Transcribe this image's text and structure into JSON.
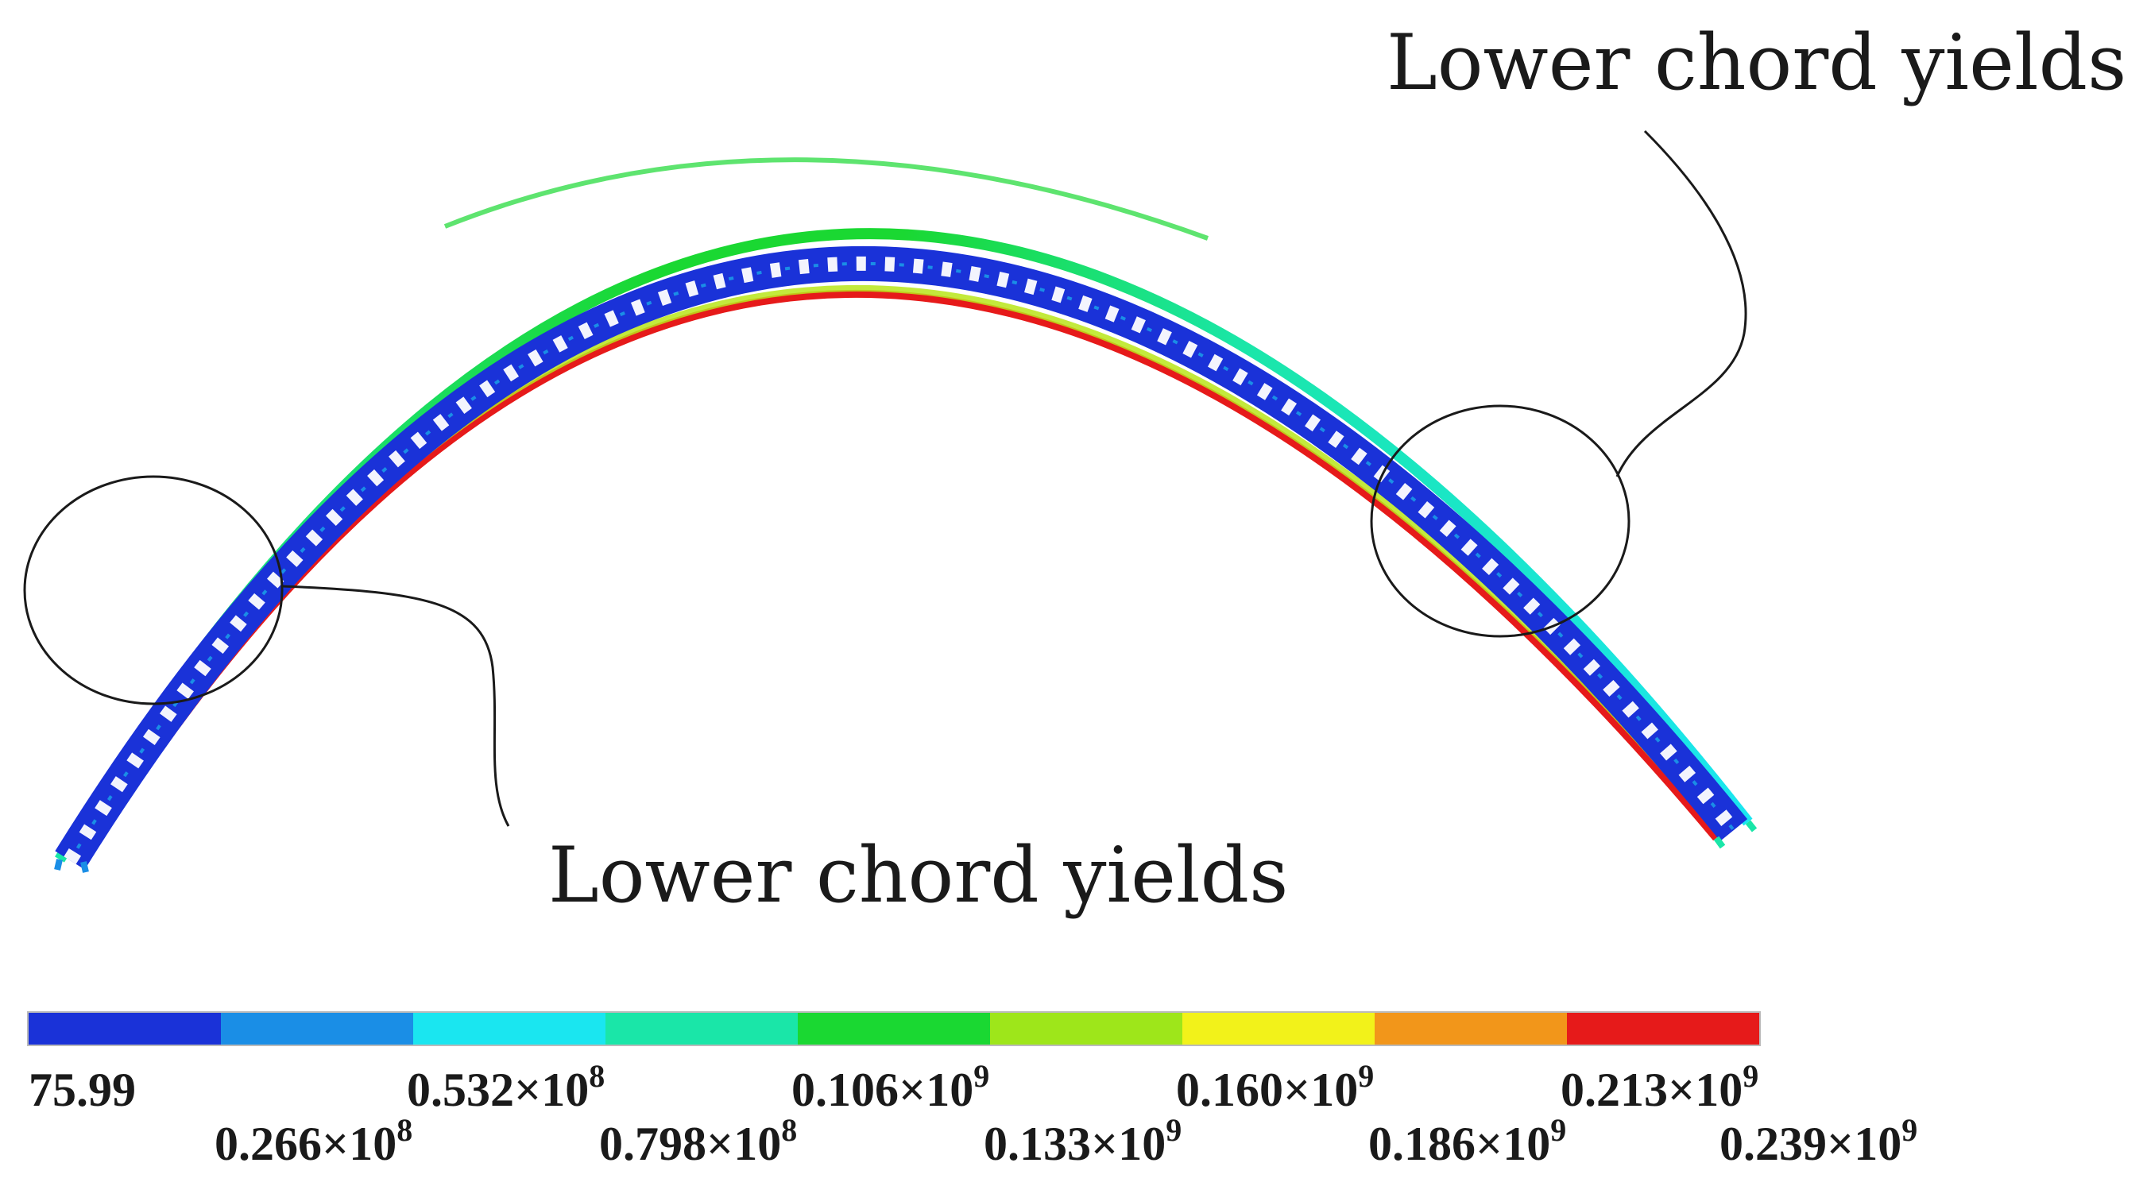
{
  "annotations": {
    "right": "Lower chord yields",
    "bottom": "Lower chord yields"
  },
  "legend": {
    "colors": [
      "#1a32d8",
      "#1a8ee6",
      "#1ae6f0",
      "#1ae6a8",
      "#1ad832",
      "#9ee61a",
      "#f2f21a",
      "#f2961a",
      "#e61a1a"
    ],
    "ticks": [
      {
        "mant": "75.99",
        "exp": ""
      },
      {
        "mant": "0.266×10",
        "exp": "8"
      },
      {
        "mant": "0.532×10",
        "exp": "8"
      },
      {
        "mant": "0.798×10",
        "exp": "8"
      },
      {
        "mant": "0.106×10",
        "exp": "9"
      },
      {
        "mant": "0.133×10",
        "exp": "9"
      },
      {
        "mant": "0.160×10",
        "exp": "9"
      },
      {
        "mant": "0.186×10",
        "exp": "9"
      },
      {
        "mant": "0.213×10",
        "exp": "9"
      },
      {
        "mant": "0.239×10",
        "exp": "9"
      }
    ]
  },
  "arch": {
    "upper_chord_color": "#1a8ee6",
    "lower_chord_color": "#e61a1a",
    "web_color": "#1a32d8",
    "crown_color": "#1ad832"
  }
}
